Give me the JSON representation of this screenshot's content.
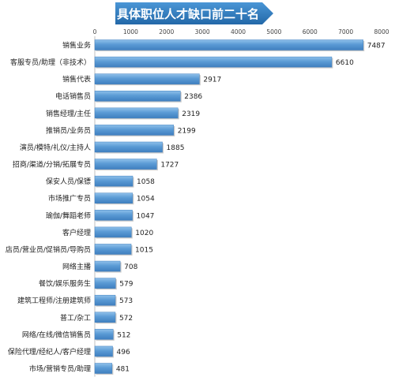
{
  "chart_data": {
    "type": "bar",
    "orientation": "horizontal",
    "title": "具体职位人才缺口前二十名",
    "xlim": [
      0,
      8000
    ],
    "xticks": [
      "0",
      "1000",
      "2000",
      "3000",
      "4000",
      "5000",
      "6000",
      "7000",
      "8000"
    ],
    "grid": false,
    "data_labels": true,
    "colors": {
      "bar": "#5b9bd5",
      "bar_dark": "#3f7fbf",
      "bar_light": "#8fc0ea",
      "title_band": "#2f7fc1",
      "title_text": "#ffffff",
      "axis": "#bfbfbf"
    },
    "categories": [
      "销售业务",
      "客服专员/助理（非技术）",
      "销售代表",
      "电话销售员",
      "销售经理/主任",
      "推销员/业务员",
      "演员/模特/礼仪/主持人",
      "招商/渠道/分销/拓展专员",
      "保安人员/保镖",
      "市场推广专员",
      "瑜伽/舞蹈老师",
      "客户经理",
      "店员/营业员/促销员/导购员",
      "网络主播",
      "餐饮/娱乐服务生",
      "建筑工程师/注册建筑师",
      "普工/杂工",
      "网络/在线/微信销售员",
      "保险代理/经纪人/客户经理",
      "市场/营销专员/助理"
    ],
    "values": [
      7487,
      6610,
      2917,
      2386,
      2319,
      2199,
      1885,
      1727,
      1058,
      1054,
      1047,
      1020,
      1015,
      708,
      579,
      573,
      572,
      512,
      496,
      481
    ]
  }
}
